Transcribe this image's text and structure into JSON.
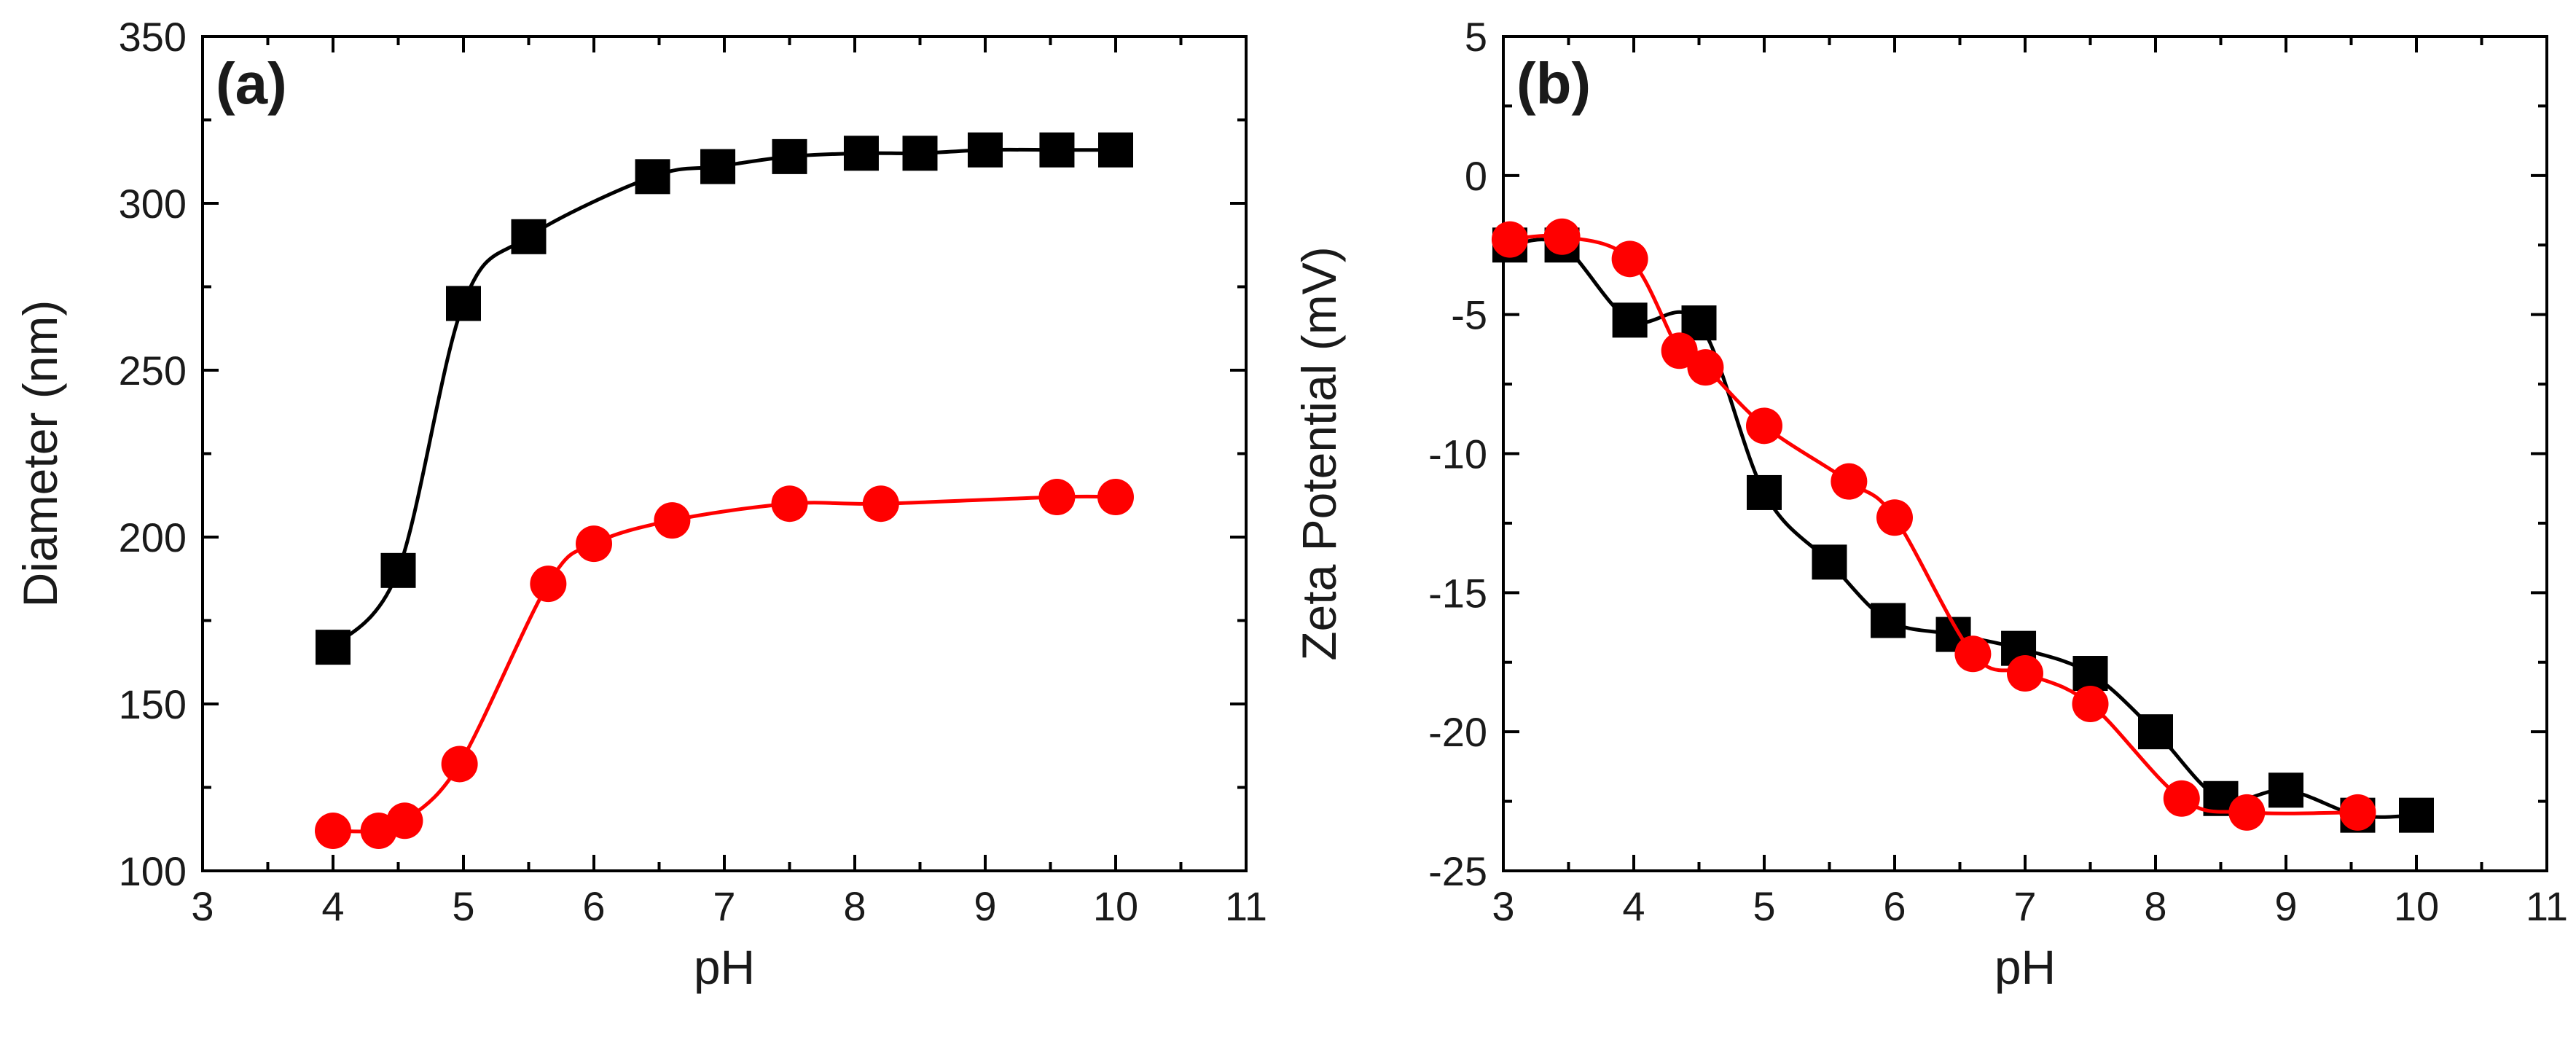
{
  "chart_data": [
    {
      "type": "line",
      "panel_label": "(a)",
      "xlabel": "pH",
      "ylabel": "Diameter (nm)",
      "xlim": [
        3,
        11
      ],
      "ylim": [
        100,
        350
      ],
      "x_major_ticks": [
        3,
        4,
        5,
        6,
        7,
        8,
        9,
        10,
        11
      ],
      "y_major_ticks": [
        100,
        150,
        200,
        250,
        300,
        350
      ],
      "grid": false,
      "series": [
        {
          "name": "black squares",
          "color": "#000000",
          "marker": "square",
          "x": [
            4.0,
            4.5,
            5.0,
            5.5,
            6.45,
            6.95,
            7.5,
            8.05,
            8.5,
            9.0,
            9.55,
            10.0
          ],
          "y": [
            167,
            190,
            270,
            290,
            308,
            311,
            314,
            315,
            315,
            316,
            316,
            316
          ]
        },
        {
          "name": "red circles",
          "color": "#ff0000",
          "marker": "circle",
          "x": [
            4.0,
            4.35,
            4.55,
            4.97,
            5.65,
            6.0,
            6.6,
            7.5,
            8.2,
            9.55,
            10.0
          ],
          "y": [
            112,
            112,
            115,
            132,
            186,
            198,
            205,
            210,
            210,
            212,
            212
          ]
        }
      ]
    },
    {
      "type": "line",
      "panel_label": "(b)",
      "xlabel": "pH",
      "ylabel": "Zeta Potential (mV)",
      "xlim": [
        3,
        11
      ],
      "ylim": [
        -25,
        5
      ],
      "x_major_ticks": [
        3,
        4,
        5,
        6,
        7,
        8,
        9,
        10,
        11
      ],
      "y_major_ticks": [
        -25,
        -20,
        -15,
        -10,
        -5,
        0,
        5
      ],
      "grid": false,
      "series": [
        {
          "name": "black squares",
          "color": "#000000",
          "marker": "square",
          "x": [
            3.05,
            3.45,
            3.97,
            4.5,
            5.0,
            5.5,
            5.95,
            6.45,
            6.95,
            7.5,
            8.0,
            8.5,
            9.0,
            9.55,
            10.0
          ],
          "y": [
            -2.5,
            -2.5,
            -5.2,
            -5.3,
            -11.4,
            -13.9,
            -16.0,
            -16.5,
            -17.0,
            -17.9,
            -20.0,
            -22.4,
            -22.1,
            -23.0,
            -23.0
          ]
        },
        {
          "name": "red circles",
          "color": "#ff0000",
          "marker": "circle",
          "x": [
            3.05,
            3.45,
            3.97,
            4.35,
            4.55,
            5.0,
            5.65,
            6.0,
            6.6,
            7.0,
            7.5,
            8.2,
            8.7,
            9.55
          ],
          "y": [
            -2.3,
            -2.2,
            -3.0,
            -6.3,
            -6.9,
            -9.0,
            -11.0,
            -12.3,
            -17.2,
            -17.9,
            -19.0,
            -22.4,
            -22.9,
            -22.9
          ]
        }
      ]
    }
  ]
}
